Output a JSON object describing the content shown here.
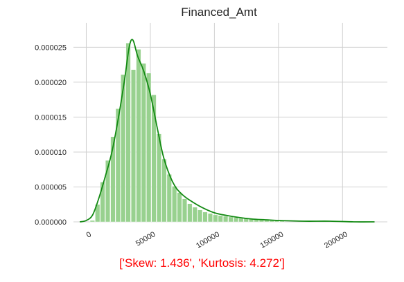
{
  "chart_data": {
    "type": "bar",
    "title": "Financed_Amt",
    "xlabel": "",
    "ylabel": "",
    "xlim": [
      -10000,
      235000
    ],
    "ylim": [
      0,
      2.85e-05
    ],
    "grid": true,
    "x_ticks": [
      {
        "value": 0,
        "label": "0"
      },
      {
        "value": 50000,
        "label": "50000"
      },
      {
        "value": 100000,
        "label": "100000"
      },
      {
        "value": 150000,
        "label": "150000"
      },
      {
        "value": 200000,
        "label": "200000"
      }
    ],
    "y_ticks": [
      {
        "value": 0,
        "label": "0.000000"
      },
      {
        "value": 5e-06,
        "label": "0.000005"
      },
      {
        "value": 1e-05,
        "label": "0.000010"
      },
      {
        "value": 1.5e-05,
        "label": "0.000015"
      },
      {
        "value": 2e-05,
        "label": "0.000020"
      },
      {
        "value": 2.5e-05,
        "label": "0.000025"
      }
    ],
    "series": [
      {
        "kind": "histogram",
        "color": "#98d18f",
        "x": [
          5000,
          9000,
          13000,
          17000,
          21000,
          25000,
          29000,
          33000,
          37000,
          41000,
          45000,
          49000,
          53000,
          57000,
          61000,
          65000,
          69000,
          73000,
          77000,
          81000,
          85000,
          89000,
          93000,
          97000,
          101000,
          105000,
          109000,
          113000,
          117000,
          121000,
          125000,
          129000,
          133000,
          137000,
          141000,
          145000,
          149000,
          153000
        ],
        "bin_width": 4000,
        "values": [
          2e-07,
          2.5e-06,
          5.7e-06,
          8.8e-06,
          1.22e-05,
          1.62e-05,
          2.11e-05,
          2.56e-05,
          2.18e-05,
          2.47e-05,
          2.27e-05,
          2.13e-05,
          1.82e-05,
          1.26e-05,
          9e-06,
          6.8e-06,
          5.1e-06,
          4.2e-06,
          3.3e-06,
          2.6e-06,
          2.1e-06,
          1.7e-06,
          1.4e-06,
          1.2e-06,
          1e-06,
          9e-07,
          8e-07,
          7e-07,
          6e-07,
          5e-07,
          5e-07,
          4e-07,
          4e-07,
          3e-07,
          3e-07,
          2e-07,
          2e-07,
          2e-07
        ]
      },
      {
        "kind": "kde-line",
        "color": "#138a13",
        "x": [
          -5000,
          0,
          5000,
          10000,
          15000,
          20000,
          25000,
          30000,
          33000,
          35000,
          37000,
          40000,
          45000,
          50000,
          55000,
          60000,
          65000,
          70000,
          75000,
          80000,
          90000,
          100000,
          110000,
          120000,
          130000,
          140000,
          150000,
          170000,
          190000,
          210000,
          225000
        ],
        "values": [
          0,
          2e-07,
          1e-06,
          3.5e-06,
          6.6e-06,
          1e-05,
          1.48e-05,
          2.05e-05,
          2.45e-05,
          2.6e-05,
          2.58e-05,
          2.38e-05,
          2.15e-05,
          1.83e-05,
          1.38e-05,
          9.5e-06,
          6.7e-06,
          4.9e-06,
          3.9e-06,
          3.2e-06,
          2.1e-06,
          1.3e-06,
          9e-07,
          6e-07,
          4e-07,
          3e-07,
          2e-07,
          1e-07,
          1e-07,
          0,
          0
        ]
      }
    ]
  },
  "annotation": "['Skew: 1.436', 'Kurtosis: 4.272']",
  "colors": {
    "hist_fill": "#98d18f",
    "kde_line": "#138a13",
    "grid": "#d0d0d0",
    "annotation": "#ff0000"
  }
}
